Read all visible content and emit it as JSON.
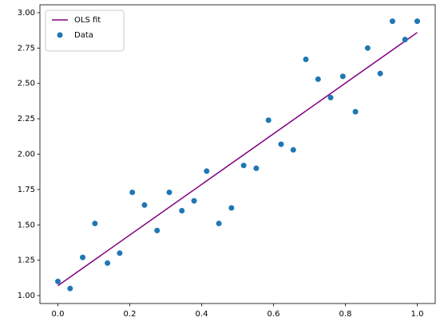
{
  "chart_data": {
    "type": "scatter",
    "xlim": [
      -0.05,
      1.05
    ],
    "ylim": [
      0.944,
      3.056
    ],
    "xticks": [
      {
        "value": 0,
        "label": "0.0"
      },
      0.2,
      0.4,
      0.6,
      0.8,
      {
        "value": 1,
        "label": "1.0"
      }
    ],
    "yticks": [
      {
        "value": 1,
        "label": "1.00"
      },
      {
        "value": 1.25,
        "label": "1.25"
      },
      {
        "value": 1.5,
        "label": "1.50"
      },
      {
        "value": 1.75,
        "label": "1.75"
      },
      {
        "value": 2,
        "label": "2.00"
      },
      {
        "value": 2.25,
        "label": "2.25"
      },
      {
        "value": 2.5,
        "label": "2.50"
      },
      {
        "value": 2.75,
        "label": "2.75"
      },
      {
        "value": 3,
        "label": "3.00"
      }
    ],
    "legend": "upper left",
    "series": [
      {
        "name": "OLS fit",
        "type": "line",
        "color": "#800080",
        "x": [
          0,
          1
        ],
        "values": [
          1.07,
          2.86
        ]
      },
      {
        "name": "Data",
        "type": "scatter",
        "color": "#1f77b4",
        "x": [
          0,
          0.034,
          0.069,
          0.103,
          0.138,
          0.172,
          0.207,
          0.241,
          0.276,
          0.31,
          0.345,
          0.379,
          0.414,
          0.448,
          0.483,
          0.517,
          0.552,
          0.586,
          0.621,
          0.655,
          0.69,
          0.724,
          0.759,
          0.793,
          0.828,
          0.862,
          0.897,
          0.931,
          0.966,
          1
        ],
        "values": [
          1.1,
          1.05,
          1.27,
          1.51,
          1.23,
          1.3,
          1.73,
          1.64,
          1.46,
          1.73,
          1.6,
          1.67,
          1.88,
          1.51,
          1.62,
          1.92,
          1.9,
          2.24,
          2.07,
          2.03,
          2.67,
          2.53,
          2.4,
          2.55,
          2.3,
          2.75,
          2.57,
          2.94,
          2.81,
          2.94
        ]
      }
    ]
  }
}
